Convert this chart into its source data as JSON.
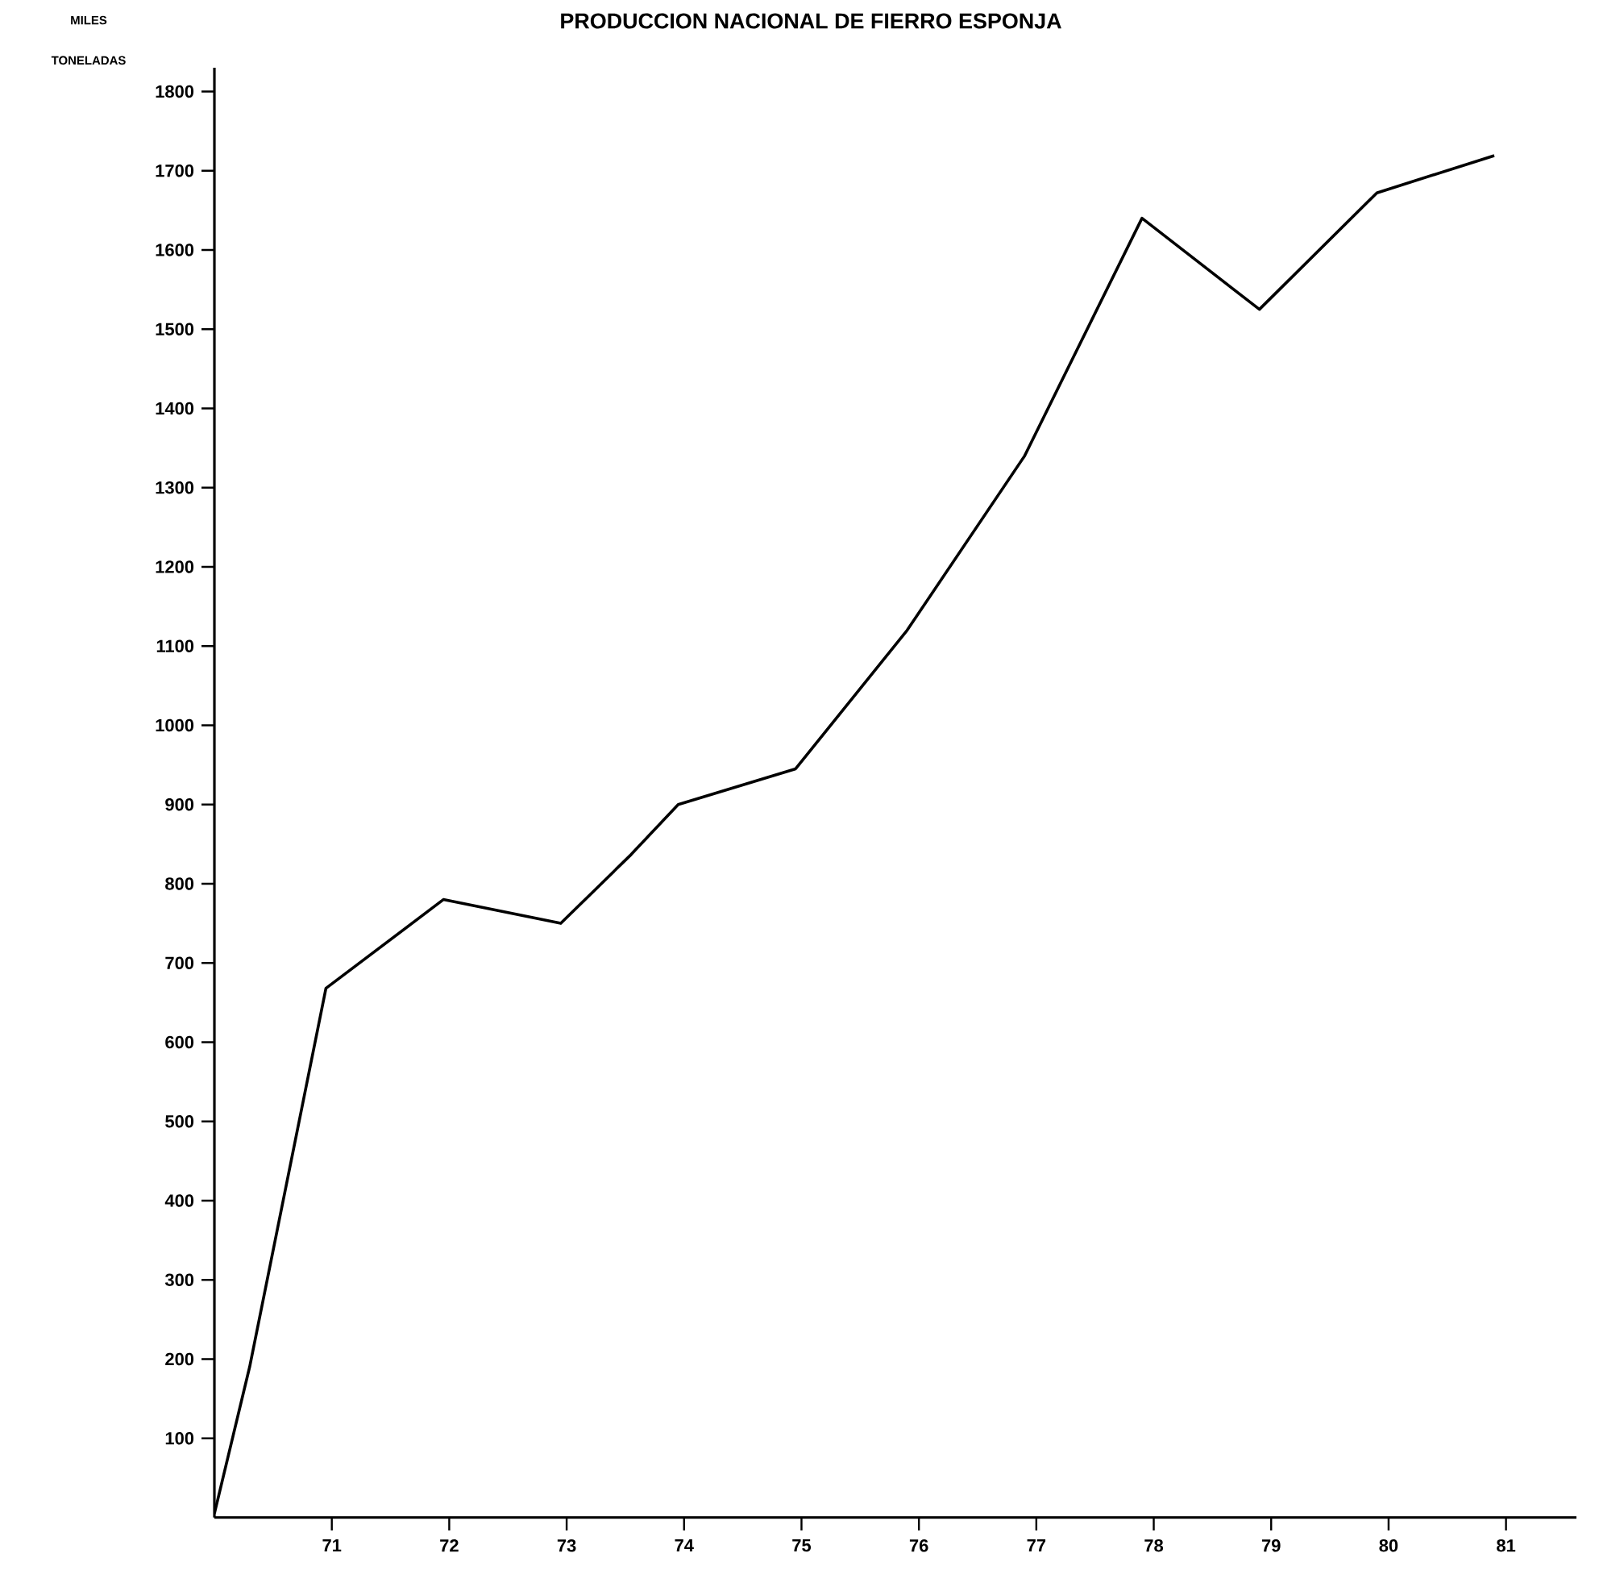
{
  "chart_data": {
    "type": "line",
    "title": "PRODUCCION NACIONAL DE FIERRO ESPONJA",
    "ylabel": "MILES TONELADAS",
    "x": [
      70,
      70.3,
      70.95,
      71.95,
      72.95,
      73.55,
      73.95,
      74.95,
      75.9,
      76.9,
      77.9,
      78.9,
      79.9,
      80.9
    ],
    "values": [
      5,
      190,
      668,
      780,
      750,
      837,
      900,
      945,
      1120,
      1340,
      1640,
      1525,
      1672,
      1719
    ],
    "color": "#000000",
    "line_style": "solid",
    "xlim": [
      70,
      81.6
    ],
    "xticks": [
      71,
      72,
      73,
      74,
      75,
      76,
      77,
      78,
      79,
      80,
      81
    ],
    "ylim": [
      0,
      1830
    ],
    "yticks": [
      100,
      200,
      300,
      400,
      500,
      600,
      700,
      800,
      900,
      1000,
      1100,
      1200,
      1300,
      1400,
      1500,
      1600,
      1700,
      1800
    ]
  }
}
